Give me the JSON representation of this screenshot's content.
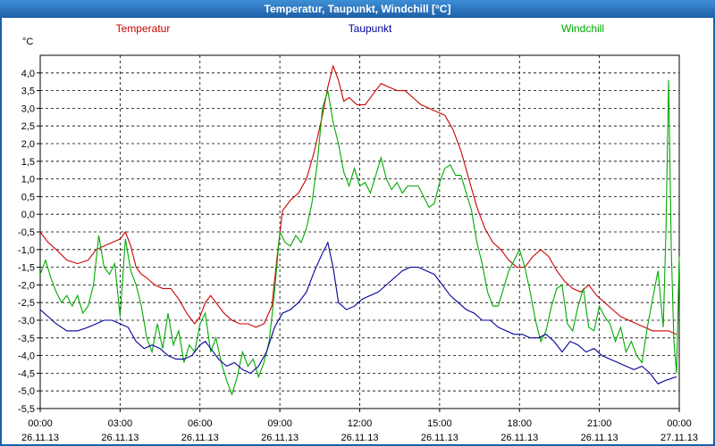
{
  "window": {
    "title": "Temperatur, Taupunkt, Windchill [°C]"
  },
  "chart_data": {
    "type": "line",
    "title": "Temperatur, Taupunkt, Windchill [°C]",
    "ylabel": "°C",
    "ylim": [
      -5.5,
      4.5
    ],
    "y_ticks": [
      {
        "v": 4.0,
        "label": "4,0"
      },
      {
        "v": 3.5,
        "label": "3,5"
      },
      {
        "v": 3.0,
        "label": "3,0"
      },
      {
        "v": 2.5,
        "label": "2,5"
      },
      {
        "v": 2.0,
        "label": "2,0"
      },
      {
        "v": 1.5,
        "label": "1,5"
      },
      {
        "v": 1.0,
        "label": "1,0"
      },
      {
        "v": 0.5,
        "label": "0,5"
      },
      {
        "v": 0.0,
        "label": "0,0"
      },
      {
        "v": -0.5,
        "label": "-0,5"
      },
      {
        "v": -1.0,
        "label": "-1,0"
      },
      {
        "v": -1.5,
        "label": "-1,5"
      },
      {
        "v": -2.0,
        "label": "-2,0"
      },
      {
        "v": -2.5,
        "label": "-2,5"
      },
      {
        "v": -3.0,
        "label": "-3,0"
      },
      {
        "v": -3.5,
        "label": "-3,5"
      },
      {
        "v": -4.0,
        "label": "-4,0"
      },
      {
        "v": -4.5,
        "label": "-4,5"
      },
      {
        "v": -5.0,
        "label": "-5,0"
      },
      {
        "v": -5.5,
        "label": "-5,5"
      }
    ],
    "xlim": [
      0,
      24
    ],
    "x_ticks": [
      {
        "h": 0,
        "time": "00:00",
        "date": "26.11.13"
      },
      {
        "h": 3,
        "time": "03:00",
        "date": "26.11.13"
      },
      {
        "h": 6,
        "time": "06:00",
        "date": "26.11.13"
      },
      {
        "h": 9,
        "time": "09:00",
        "date": "26.11.13"
      },
      {
        "h": 12,
        "time": "12:00",
        "date": "26.11.13"
      },
      {
        "h": 15,
        "time": "15:00",
        "date": "26.11.13"
      },
      {
        "h": 18,
        "time": "18:00",
        "date": "26.11.13"
      },
      {
        "h": 21,
        "time": "21:00",
        "date": "26.11.13"
      },
      {
        "h": 24,
        "time": "00:00",
        "date": "27.11.13"
      }
    ],
    "grid": true,
    "legend_placement": "top",
    "series": [
      {
        "name": "Temperatur",
        "color": "#cc0000",
        "points": [
          [
            0,
            -0.5
          ],
          [
            0.3,
            -0.8
          ],
          [
            0.6,
            -1.0
          ],
          [
            1.0,
            -1.3
          ],
          [
            1.4,
            -1.4
          ],
          [
            1.8,
            -1.3
          ],
          [
            2.1,
            -1.0
          ],
          [
            2.4,
            -0.9
          ],
          [
            2.7,
            -0.8
          ],
          [
            3.0,
            -0.7
          ],
          [
            3.2,
            -0.5
          ],
          [
            3.4,
            -0.9
          ],
          [
            3.6,
            -1.5
          ],
          [
            3.8,
            -1.7
          ],
          [
            4.0,
            -1.8
          ],
          [
            4.3,
            -2.0
          ],
          [
            4.6,
            -2.1
          ],
          [
            4.9,
            -2.1
          ],
          [
            5.2,
            -2.4
          ],
          [
            5.5,
            -2.8
          ],
          [
            5.8,
            -3.1
          ],
          [
            6.0,
            -2.9
          ],
          [
            6.2,
            -2.5
          ],
          [
            6.4,
            -2.3
          ],
          [
            6.6,
            -2.5
          ],
          [
            6.9,
            -2.8
          ],
          [
            7.2,
            -3.0
          ],
          [
            7.5,
            -3.1
          ],
          [
            7.8,
            -3.1
          ],
          [
            8.1,
            -3.2
          ],
          [
            8.4,
            -3.1
          ],
          [
            8.7,
            -2.6
          ],
          [
            8.9,
            -1.2
          ],
          [
            9.1,
            0.1
          ],
          [
            9.4,
            0.4
          ],
          [
            9.7,
            0.6
          ],
          [
            10.0,
            1.0
          ],
          [
            10.3,
            1.8
          ],
          [
            10.6,
            2.8
          ],
          [
            10.8,
            3.6
          ],
          [
            11.0,
            4.2
          ],
          [
            11.2,
            3.8
          ],
          [
            11.4,
            3.2
          ],
          [
            11.6,
            3.3
          ],
          [
            11.9,
            3.1
          ],
          [
            12.2,
            3.1
          ],
          [
            12.5,
            3.4
          ],
          [
            12.8,
            3.7
          ],
          [
            13.1,
            3.6
          ],
          [
            13.4,
            3.5
          ],
          [
            13.7,
            3.5
          ],
          [
            14.0,
            3.3
          ],
          [
            14.3,
            3.1
          ],
          [
            14.6,
            3.0
          ],
          [
            14.9,
            2.9
          ],
          [
            15.2,
            2.8
          ],
          [
            15.5,
            2.4
          ],
          [
            15.8,
            1.8
          ],
          [
            16.1,
            1.0
          ],
          [
            16.4,
            0.2
          ],
          [
            16.7,
            -0.4
          ],
          [
            17.0,
            -0.8
          ],
          [
            17.3,
            -1.0
          ],
          [
            17.6,
            -1.3
          ],
          [
            17.9,
            -1.5
          ],
          [
            18.2,
            -1.5
          ],
          [
            18.5,
            -1.2
          ],
          [
            18.8,
            -1.0
          ],
          [
            19.1,
            -1.2
          ],
          [
            19.4,
            -1.6
          ],
          [
            19.7,
            -1.9
          ],
          [
            20.0,
            -2.1
          ],
          [
            20.3,
            -2.2
          ],
          [
            20.6,
            -2.0
          ],
          [
            20.9,
            -2.3
          ],
          [
            21.2,
            -2.5
          ],
          [
            21.5,
            -2.7
          ],
          [
            21.8,
            -2.9
          ],
          [
            22.1,
            -3.0
          ],
          [
            22.4,
            -3.1
          ],
          [
            22.7,
            -3.2
          ],
          [
            23.0,
            -3.3
          ],
          [
            23.3,
            -3.3
          ],
          [
            23.6,
            -3.3
          ],
          [
            23.9,
            -3.4
          ]
        ]
      },
      {
        "name": "Taupunkt",
        "color": "#000099",
        "points": [
          [
            0,
            -2.7
          ],
          [
            0.3,
            -2.9
          ],
          [
            0.6,
            -3.1
          ],
          [
            1.0,
            -3.3
          ],
          [
            1.4,
            -3.3
          ],
          [
            1.8,
            -3.2
          ],
          [
            2.1,
            -3.1
          ],
          [
            2.4,
            -3.0
          ],
          [
            2.7,
            -3.0
          ],
          [
            3.0,
            -3.1
          ],
          [
            3.3,
            -3.2
          ],
          [
            3.6,
            -3.6
          ],
          [
            3.9,
            -3.8
          ],
          [
            4.2,
            -3.7
          ],
          [
            4.5,
            -3.8
          ],
          [
            4.8,
            -4.0
          ],
          [
            5.1,
            -4.1
          ],
          [
            5.4,
            -4.1
          ],
          [
            5.7,
            -4.0
          ],
          [
            6.0,
            -3.7
          ],
          [
            6.2,
            -3.6
          ],
          [
            6.4,
            -3.8
          ],
          [
            6.7,
            -4.1
          ],
          [
            7.0,
            -4.3
          ],
          [
            7.3,
            -4.2
          ],
          [
            7.6,
            -4.4
          ],
          [
            7.9,
            -4.5
          ],
          [
            8.2,
            -4.3
          ],
          [
            8.5,
            -3.9
          ],
          [
            8.8,
            -3.2
          ],
          [
            9.1,
            -2.8
          ],
          [
            9.4,
            -2.7
          ],
          [
            9.7,
            -2.5
          ],
          [
            10.0,
            -2.2
          ],
          [
            10.3,
            -1.6
          ],
          [
            10.6,
            -1.1
          ],
          [
            10.8,
            -0.8
          ],
          [
            11.0,
            -1.5
          ],
          [
            11.2,
            -2.5
          ],
          [
            11.5,
            -2.7
          ],
          [
            11.8,
            -2.6
          ],
          [
            12.1,
            -2.4
          ],
          [
            12.4,
            -2.3
          ],
          [
            12.7,
            -2.2
          ],
          [
            13.0,
            -2.0
          ],
          [
            13.3,
            -1.8
          ],
          [
            13.6,
            -1.6
          ],
          [
            13.9,
            -1.5
          ],
          [
            14.2,
            -1.5
          ],
          [
            14.5,
            -1.6
          ],
          [
            14.8,
            -1.7
          ],
          [
            15.1,
            -2.0
          ],
          [
            15.4,
            -2.3
          ],
          [
            15.7,
            -2.5
          ],
          [
            16.0,
            -2.7
          ],
          [
            16.3,
            -2.8
          ],
          [
            16.6,
            -3.0
          ],
          [
            16.9,
            -3.0
          ],
          [
            17.2,
            -3.2
          ],
          [
            17.5,
            -3.3
          ],
          [
            17.8,
            -3.4
          ],
          [
            18.1,
            -3.4
          ],
          [
            18.4,
            -3.5
          ],
          [
            18.7,
            -3.5
          ],
          [
            19.0,
            -3.4
          ],
          [
            19.3,
            -3.6
          ],
          [
            19.6,
            -3.9
          ],
          [
            19.9,
            -3.6
          ],
          [
            20.2,
            -3.7
          ],
          [
            20.5,
            -3.9
          ],
          [
            20.8,
            -3.8
          ],
          [
            21.1,
            -4.0
          ],
          [
            21.4,
            -4.1
          ],
          [
            21.7,
            -4.2
          ],
          [
            22.0,
            -4.3
          ],
          [
            22.3,
            -4.4
          ],
          [
            22.6,
            -4.3
          ],
          [
            22.9,
            -4.5
          ],
          [
            23.2,
            -4.8
          ],
          [
            23.5,
            -4.7
          ],
          [
            23.9,
            -4.6
          ]
        ]
      },
      {
        "name": "Windchill",
        "color": "#00aa00",
        "points": [
          [
            0,
            -1.7
          ],
          [
            0.2,
            -1.3
          ],
          [
            0.4,
            -1.8
          ],
          [
            0.6,
            -2.2
          ],
          [
            0.8,
            -2.5
          ],
          [
            1.0,
            -2.3
          ],
          [
            1.2,
            -2.6
          ],
          [
            1.4,
            -2.3
          ],
          [
            1.6,
            -2.8
          ],
          [
            1.8,
            -2.6
          ],
          [
            2.0,
            -2.0
          ],
          [
            2.2,
            -0.6
          ],
          [
            2.4,
            -1.5
          ],
          [
            2.6,
            -1.7
          ],
          [
            2.8,
            -1.4
          ],
          [
            3.0,
            -2.9
          ],
          [
            3.2,
            -0.7
          ],
          [
            3.4,
            -1.6
          ],
          [
            3.6,
            -2.0
          ],
          [
            3.8,
            -2.6
          ],
          [
            4.0,
            -3.5
          ],
          [
            4.2,
            -3.9
          ],
          [
            4.4,
            -3.1
          ],
          [
            4.6,
            -3.8
          ],
          [
            4.8,
            -2.8
          ],
          [
            5.0,
            -3.7
          ],
          [
            5.2,
            -3.3
          ],
          [
            5.4,
            -4.2
          ],
          [
            5.6,
            -3.7
          ],
          [
            5.8,
            -3.9
          ],
          [
            6.0,
            -3.1
          ],
          [
            6.2,
            -2.8
          ],
          [
            6.4,
            -3.9
          ],
          [
            6.6,
            -3.5
          ],
          [
            6.8,
            -4.2
          ],
          [
            7.0,
            -4.7
          ],
          [
            7.2,
            -5.1
          ],
          [
            7.4,
            -4.6
          ],
          [
            7.6,
            -3.9
          ],
          [
            7.8,
            -4.3
          ],
          [
            8.0,
            -4.1
          ],
          [
            8.2,
            -4.6
          ],
          [
            8.4,
            -4.2
          ],
          [
            8.6,
            -3.6
          ],
          [
            8.8,
            -2.2
          ],
          [
            9.0,
            -0.5
          ],
          [
            9.2,
            -0.8
          ],
          [
            9.4,
            -0.9
          ],
          [
            9.6,
            -0.6
          ],
          [
            9.8,
            -0.8
          ],
          [
            10.0,
            -0.4
          ],
          [
            10.2,
            0.3
          ],
          [
            10.4,
            1.4
          ],
          [
            10.6,
            3.0
          ],
          [
            10.8,
            3.5
          ],
          [
            11.0,
            2.6
          ],
          [
            11.2,
            2.0
          ],
          [
            11.4,
            1.2
          ],
          [
            11.6,
            0.8
          ],
          [
            11.8,
            1.3
          ],
          [
            12.0,
            0.8
          ],
          [
            12.2,
            0.9
          ],
          [
            12.4,
            0.6
          ],
          [
            12.6,
            1.1
          ],
          [
            12.8,
            1.6
          ],
          [
            13.0,
            1.0
          ],
          [
            13.2,
            0.7
          ],
          [
            13.4,
            0.9
          ],
          [
            13.6,
            0.6
          ],
          [
            13.8,
            0.8
          ],
          [
            14.0,
            0.8
          ],
          [
            14.2,
            0.8
          ],
          [
            14.4,
            0.5
          ],
          [
            14.6,
            0.2
          ],
          [
            14.8,
            0.3
          ],
          [
            15.0,
            0.9
          ],
          [
            15.2,
            1.3
          ],
          [
            15.4,
            1.4
          ],
          [
            15.6,
            1.1
          ],
          [
            15.8,
            1.1
          ],
          [
            16.0,
            0.6
          ],
          [
            16.2,
            0.1
          ],
          [
            16.4,
            -0.8
          ],
          [
            16.6,
            -1.4
          ],
          [
            16.8,
            -2.2
          ],
          [
            17.0,
            -2.6
          ],
          [
            17.2,
            -2.6
          ],
          [
            17.4,
            -2.1
          ],
          [
            17.6,
            -1.6
          ],
          [
            17.8,
            -1.3
          ],
          [
            18.0,
            -1.0
          ],
          [
            18.2,
            -1.5
          ],
          [
            18.4,
            -2.2
          ],
          [
            18.6,
            -3.0
          ],
          [
            18.8,
            -3.6
          ],
          [
            19.0,
            -3.3
          ],
          [
            19.2,
            -2.6
          ],
          [
            19.4,
            -2.1
          ],
          [
            19.6,
            -2.0
          ],
          [
            19.8,
            -3.1
          ],
          [
            20.0,
            -3.3
          ],
          [
            20.2,
            -2.6
          ],
          [
            20.4,
            -2.1
          ],
          [
            20.6,
            -3.2
          ],
          [
            20.8,
            -3.3
          ],
          [
            21.0,
            -2.6
          ],
          [
            21.2,
            -2.9
          ],
          [
            21.4,
            -3.1
          ],
          [
            21.6,
            -3.6
          ],
          [
            21.8,
            -3.2
          ],
          [
            22.0,
            -3.9
          ],
          [
            22.2,
            -3.6
          ],
          [
            22.4,
            -4.0
          ],
          [
            22.6,
            -4.2
          ],
          [
            22.8,
            -3.2
          ],
          [
            23.0,
            -2.4
          ],
          [
            23.2,
            -1.6
          ],
          [
            23.4,
            -3.2
          ],
          [
            23.5,
            -0.5
          ],
          [
            23.6,
            3.8
          ],
          [
            23.7,
            -1.0
          ],
          [
            23.8,
            -3.6
          ],
          [
            23.9,
            -4.5
          ],
          [
            24.0,
            -1.2
          ]
        ]
      }
    ]
  }
}
